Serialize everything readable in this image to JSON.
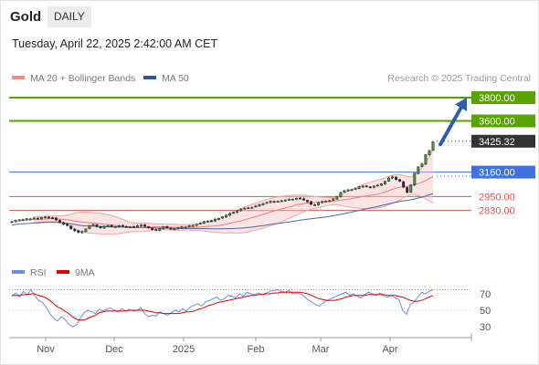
{
  "header": {
    "title": "Gold",
    "period": "DAILY",
    "datetime": "Tuesday, April 22, 2025 2:42:00 AM CET",
    "research": "Research © 2025 Trading Central"
  },
  "legend": {
    "items": [
      {
        "label": "MA 20 + Bollinger Bands",
        "color": "#f28b82"
      },
      {
        "label": "MA 50",
        "color": "#2f5597"
      }
    ],
    "rsi_items": [
      {
        "label": "RSI",
        "color": "#6d8fd8"
      },
      {
        "label": "9MA",
        "color": "#e00000"
      }
    ]
  },
  "chart_data": {
    "type": "candlestick",
    "x_labels": [
      "Nov",
      "Dec",
      "2025",
      "Feb",
      "Mar",
      "Apr"
    ],
    "last_price": "3425.32",
    "levels": [
      {
        "value": 3800,
        "label": "3800.00",
        "color": "#57a300",
        "kind": "resistance"
      },
      {
        "value": 3600,
        "label": "3600.00",
        "color": "#57a300",
        "kind": "resistance"
      },
      {
        "value": 3160,
        "label": "3160.00",
        "color": "#3f72e0",
        "kind": "pivot"
      },
      {
        "value": 2950,
        "label": "2950.00",
        "color": "#e05555",
        "kind": "support"
      },
      {
        "value": 2830,
        "label": "2830.00",
        "color": "#e05555",
        "kind": "support"
      }
    ],
    "closes": [
      2735,
      2745,
      2750,
      2752,
      2760,
      2758,
      2766,
      2760,
      2770,
      2775,
      2770,
      2764,
      2748,
      2728,
      2712,
      2700,
      2672,
      2655,
      2640,
      2650,
      2672,
      2700,
      2710,
      2690,
      2680,
      2695,
      2700,
      2690,
      2692,
      2700,
      2694,
      2688,
      2690,
      2688,
      2700,
      2706,
      2693,
      2680,
      2665,
      2660,
      2675,
      2690,
      2680,
      2670,
      2672,
      2680,
      2690,
      2688,
      2700,
      2702,
      2712,
      2722,
      2735,
      2740,
      2740,
      2755,
      2762,
      2775,
      2790,
      2805,
      2815,
      2830,
      2842,
      2850,
      2855,
      2858,
      2870,
      2880,
      2890,
      2900,
      2910,
      2905,
      2910,
      2915,
      2920,
      2925,
      2928,
      2935,
      2933,
      2920,
      2905,
      2882,
      2880,
      2895,
      2908,
      2912,
      2915,
      2930,
      2950,
      2985,
      3000,
      3008,
      3010,
      3020,
      3035,
      3040,
      3035,
      3030,
      3040,
      3048,
      3060,
      3080,
      3110,
      3120,
      3095,
      3080,
      3030,
      2985,
      3050,
      3150,
      3205,
      3230,
      3310,
      3345,
      3420
    ],
    "rsi": {
      "y_ticks": [
        30,
        50,
        70
      ],
      "overbought": 75,
      "values": [
        67,
        71,
        66,
        73,
        69,
        75,
        68,
        62,
        60,
        54,
        46,
        40,
        37,
        42,
        39,
        33,
        30,
        32,
        40,
        47,
        50,
        48,
        46,
        51,
        49,
        51,
        53,
        50,
        48,
        52,
        49,
        51,
        49,
        50,
        53,
        46,
        42,
        44,
        43,
        48,
        46,
        44,
        47,
        50,
        48,
        52,
        49,
        54,
        56,
        58,
        55,
        60,
        62,
        64,
        66,
        62,
        64,
        68,
        67,
        65,
        70,
        67,
        72,
        70,
        69,
        71,
        69,
        71,
        73,
        74,
        75,
        73,
        72,
        74,
        70,
        71,
        70,
        67,
        63,
        60,
        57,
        55,
        59,
        62,
        64,
        66,
        68,
        70,
        72,
        68,
        70,
        67,
        65,
        69,
        72,
        70,
        68,
        71,
        67,
        66,
        68,
        65,
        63,
        50,
        45,
        57,
        60,
        66,
        72,
        70,
        73,
        75
      ],
      "ma": [
        68,
        68,
        68,
        69,
        69,
        70,
        70,
        68,
        67,
        65,
        62,
        58,
        54,
        52,
        49,
        46,
        42,
        39,
        38,
        38,
        40,
        42,
        44,
        47,
        48,
        49,
        49,
        49,
        49,
        49,
        49,
        50,
        50,
        50,
        50,
        50,
        49,
        48,
        47,
        47,
        46,
        46,
        46,
        46,
        46,
        47,
        48,
        48,
        49,
        51,
        52,
        54,
        56,
        57,
        59,
        60,
        61,
        62,
        63,
        64,
        65,
        66,
        67,
        68,
        68,
        69,
        69,
        70,
        70,
        71,
        71,
        72,
        72,
        72,
        72,
        72,
        72,
        71,
        70,
        68,
        66,
        64,
        63,
        62,
        62,
        62,
        63,
        64,
        66,
        67,
        68,
        68,
        68,
        68,
        69,
        69,
        69,
        69,
        69,
        68,
        68,
        68,
        67,
        66,
        64,
        62,
        61,
        61,
        62,
        64,
        66,
        68
      ]
    }
  }
}
